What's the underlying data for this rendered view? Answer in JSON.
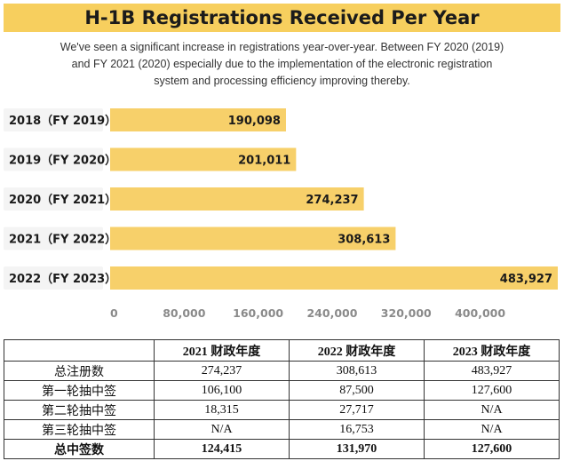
{
  "chart_data": {
    "type": "bar",
    "orientation": "horizontal",
    "title": "H-1B Registrations Received Per Year",
    "subtitle": "We've seen a significant increase in registrations year-over-year. Between FY 2020 (2019) and FY 2021 (2020) especially due to the implementation of the electronic registration system and processing efficiency improving thereby.",
    "categories": [
      "2018（FY 2019）",
      "2019（FY 2020）",
      "2020（FY 2021）",
      "2021（FY 2022）",
      "2022（FY 2023）"
    ],
    "values": [
      190098,
      201011,
      274237,
      308613,
      483927
    ],
    "data_labels": [
      "190,098",
      "201,011",
      "274,237",
      "308,613",
      "483,927"
    ],
    "xticks": [
      0,
      80000,
      160000,
      240000,
      320000,
      400000
    ],
    "xtick_labels": [
      "0",
      "80,000",
      "160,000",
      "240,000",
      "320,000",
      "400,000"
    ],
    "xlim": [
      0,
      483927
    ],
    "grid": false,
    "colors": {
      "bar": "#f7d06a",
      "category_bg": "#f4f4f4",
      "banner": "#f7cf5e"
    }
  },
  "table": {
    "headers": [
      "",
      "2021 财政年度",
      "2022 财政年度",
      "2023 财政年度"
    ],
    "rows": [
      [
        "总注册数",
        "274,237",
        "308,613",
        "483,927"
      ],
      [
        "第一轮抽中签",
        "106,100",
        "87,500",
        "127,600"
      ],
      [
        "第二轮抽中签",
        "18,315",
        "27,717",
        "N/A"
      ],
      [
        "第三轮抽中签",
        "N/A",
        "16,753",
        "N/A"
      ]
    ],
    "total_row": [
      "总中签数",
      "124,415",
      "131,970",
      "127,600"
    ]
  }
}
